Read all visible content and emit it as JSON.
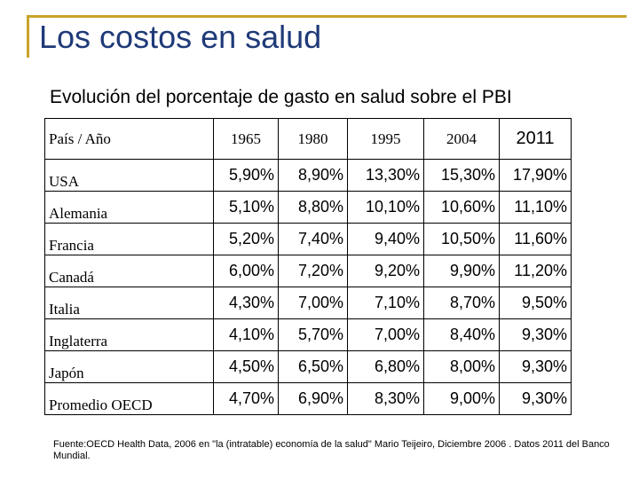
{
  "slide": {
    "title": "Los costos en salud",
    "subtitle": "Evolución del porcentaje de gasto en salud sobre el PBI",
    "source": "Fuente:OECD Health Data, 2006 en \"la (intratable) economía de la salud\" Mario Teijeiro,  Diciembre 2006 .   Datos 2011 del Banco Mundial.",
    "accent_color": "#c9a42a",
    "title_color": "#1f3a78"
  },
  "table": {
    "header": {
      "label": "País / Año",
      "years": [
        "1965",
        "1980",
        "1995",
        "2004",
        "2011"
      ]
    },
    "rows": [
      {
        "country": "USA",
        "values": [
          "5,90%",
          "8,90%",
          "13,30%",
          "15,30%",
          "17,90%"
        ]
      },
      {
        "country": "Alemania",
        "values": [
          "5,10%",
          "8,80%",
          "10,10%",
          "10,60%",
          "11,10%"
        ]
      },
      {
        "country": "Francia",
        "values": [
          "5,20%",
          "7,40%",
          "9,40%",
          "10,50%",
          "11,60%"
        ]
      },
      {
        "country": "Canadá",
        "values": [
          "6,00%",
          "7,20%",
          "9,20%",
          "9,90%",
          "11,20%"
        ]
      },
      {
        "country": "Italia",
        "values": [
          "4,30%",
          "7,00%",
          "7,10%",
          "8,70%",
          "9,50%"
        ]
      },
      {
        "country": "Inglaterra",
        "values": [
          "4,10%",
          "5,70%",
          "7,00%",
          "8,40%",
          "9,30%"
        ]
      },
      {
        "country": "Japón",
        "values": [
          "4,50%",
          "6,50%",
          "6,80%",
          "8,00%",
          "9,30%"
        ]
      },
      {
        "country": "Promedio OECD",
        "values": [
          "4,70%",
          "6,90%",
          "8,30%",
          "9,00%",
          "9,30%"
        ]
      }
    ]
  }
}
